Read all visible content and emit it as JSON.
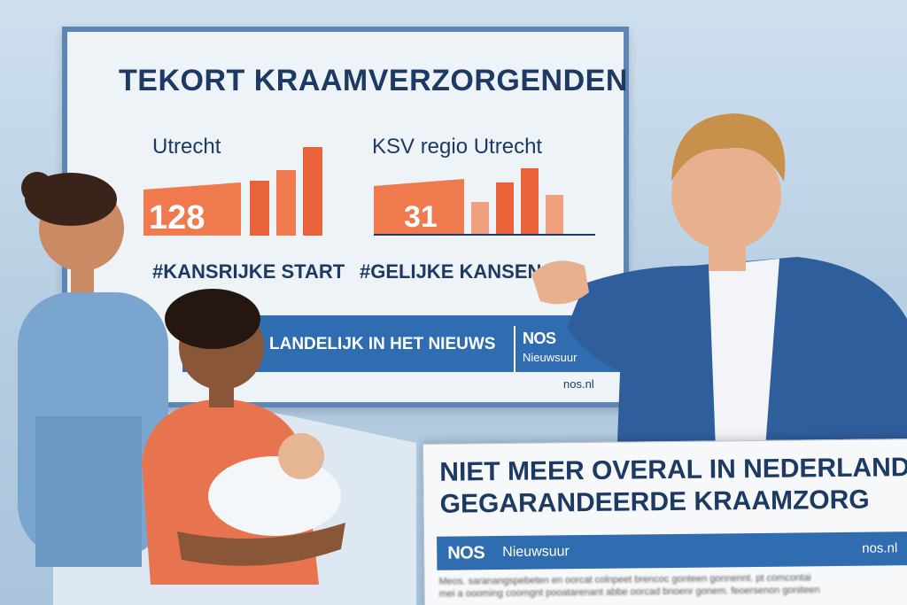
{
  "board": {
    "title": "TEKORT KRAAMVERZORGENDEN",
    "left_panel": {
      "label": "Utrecht",
      "value": "128",
      "hashtag": "#KANSRIJKE START"
    },
    "right_panel": {
      "label": "KSV regio Utrecht",
      "value": "31",
      "hashtag": "#GELIJKE KANSEN"
    },
    "banner_text": "LANDELIJK IN HET NIEUWS",
    "brand_logo": "NOS",
    "brand_sub": "Nieuwsuur",
    "url": "nos.nl"
  },
  "card": {
    "headline_line1": "NIET MEER OVERAL IN NEDERLAND",
    "headline_line2": "GEGARANDEERDE KRAAMZORG",
    "brand_logo": "NOS",
    "brand_sub": "Nieuwsuur",
    "url": "nos.nl",
    "body_line1": "Meos. saranangspebeten en oorcat colnpeet brencoc gonteen gonnennt. pt comcontai",
    "body_line2": "mei a oooming coomgnt pooatarenant abbe oorcad bnoenr gonem. feoersenon goniteen"
  },
  "colors": {
    "board_blue": "#2f6cb0",
    "title_navy": "#1c3a63",
    "bar_orange": "#e8623a"
  }
}
